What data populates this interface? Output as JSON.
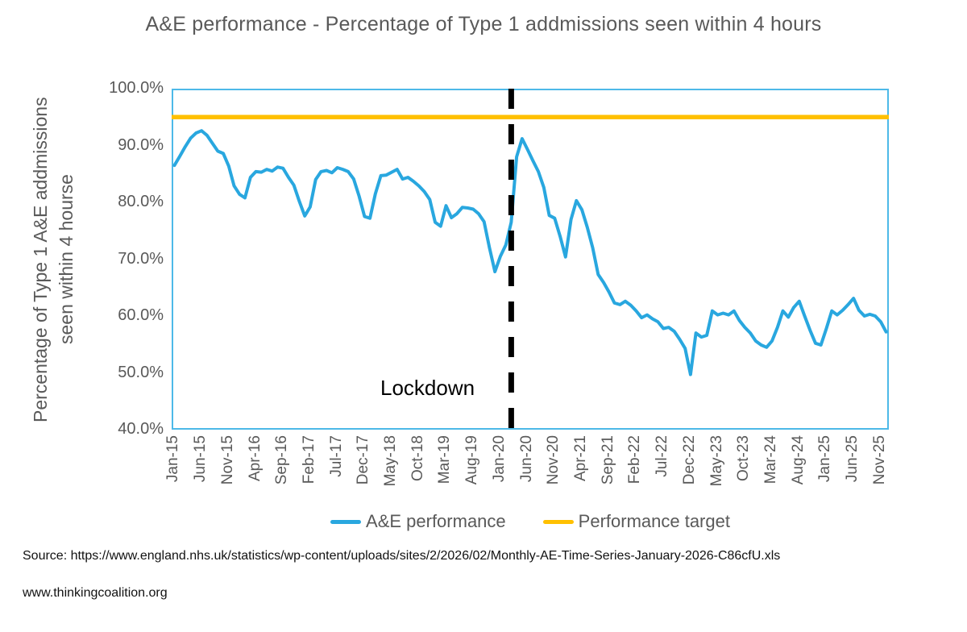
{
  "title": "A&E performance - Percentage of Type 1 addmissions seen within 4 hours",
  "y_axis": {
    "label_line1": "Percentage of Type 1 A&E addmissions",
    "label_line2": "seen within 4 hourse"
  },
  "annotation": {
    "label": "Lockdown"
  },
  "legend": [
    {
      "label": "A&E performance",
      "color": "#29a7df"
    },
    {
      "label": "Performance target",
      "color": "#ffc000"
    }
  ],
  "footer": {
    "source": "Source:  https://www.england.nhs.uk/statistics/wp-content/uploads/sites/2/2026/02/Monthly-AE-Time-Series-January-2026-C86cfU.xls",
    "website": "www.thinkingcoalition.org"
  },
  "chart_data": {
    "type": "line",
    "title": "A&E performance - Percentage of Type 1 addmissions seen within 4 hours",
    "ylabel": "Percentage of Type 1 A&E addmissions seen within 4 hourse",
    "ylim": [
      40,
      100
    ],
    "y_ticks": [
      "100.0%",
      "90.0%",
      "80.0%",
      "70.0%",
      "60.0%",
      "50.0%",
      "40.0%"
    ],
    "x_start": "Jan-15",
    "x_end": "Dec-25",
    "x_tick_every": 5,
    "x_tick_labels": [
      "Jan-15",
      "Jun-15",
      "Nov-15",
      "Apr-16",
      "Sep-16",
      "Feb-17",
      "Jul-17",
      "Dec-17",
      "May-18",
      "Oct-18",
      "Mar-19",
      "Aug-19",
      "Jan-20",
      "Jun-20",
      "Nov-20",
      "Apr-21",
      "Sep-21",
      "Feb-22",
      "Jul-22",
      "Dec-22",
      "May-23",
      "Oct-23",
      "Mar-24",
      "Aug-24",
      "Jan-25",
      "Jun-25",
      "Nov-25"
    ],
    "grid": false,
    "legend_position": "bottom",
    "series": [
      {
        "name": "A&E performance",
        "color": "#29a7df",
        "values": [
          86.5,
          88.1,
          89.8,
          91.3,
          92.2,
          92.6,
          91.8,
          90.4,
          89.0,
          88.6,
          86.4,
          82.9,
          81.4,
          80.8,
          84.4,
          85.4,
          85.3,
          85.8,
          85.5,
          86.2,
          86.0,
          84.4,
          83.0,
          80.2,
          77.6,
          79.2,
          84.0,
          85.4,
          85.6,
          85.2,
          86.1,
          85.8,
          85.4,
          84.1,
          81.1,
          77.5,
          77.2,
          81.5,
          84.7,
          84.8,
          85.3,
          85.8,
          84.1,
          84.4,
          83.7,
          82.9,
          81.9,
          80.5,
          76.5,
          75.8,
          79.4,
          77.3,
          78.0,
          79.1,
          79.0,
          78.8,
          78.0,
          76.6,
          72.0,
          67.8,
          70.5,
          72.5,
          76.5,
          88.0,
          91.2,
          89.3,
          87.3,
          85.4,
          82.6,
          77.7,
          77.2,
          74.0,
          70.4,
          77.0,
          80.3,
          78.7,
          75.6,
          72.0,
          67.3,
          65.9,
          64.2,
          62.3,
          62.0,
          62.6,
          61.9,
          60.9,
          59.7,
          60.2,
          59.5,
          59.0,
          57.8,
          58.0,
          57.3,
          55.9,
          54.3,
          49.7,
          57.0,
          56.3,
          56.6,
          60.9,
          60.2,
          60.5,
          60.2,
          60.9,
          59.2,
          58.0,
          57.0,
          55.6,
          54.9,
          54.5,
          55.6,
          58.0,
          60.9,
          59.8,
          61.5,
          62.6,
          60.0,
          57.5,
          55.2,
          54.9,
          57.8,
          60.9,
          60.2,
          61.0,
          62.0,
          63.1,
          61.0,
          60.0,
          60.3,
          60.0,
          59.0,
          57.2
        ]
      },
      {
        "name": "Performance target",
        "color": "#ffc000",
        "constant": 95
      }
    ],
    "annotations": [
      {
        "type": "vline",
        "label": "Lockdown",
        "month": "Mar-20",
        "month_index": 62,
        "color": "#000000",
        "style": "dashed"
      }
    ]
  }
}
